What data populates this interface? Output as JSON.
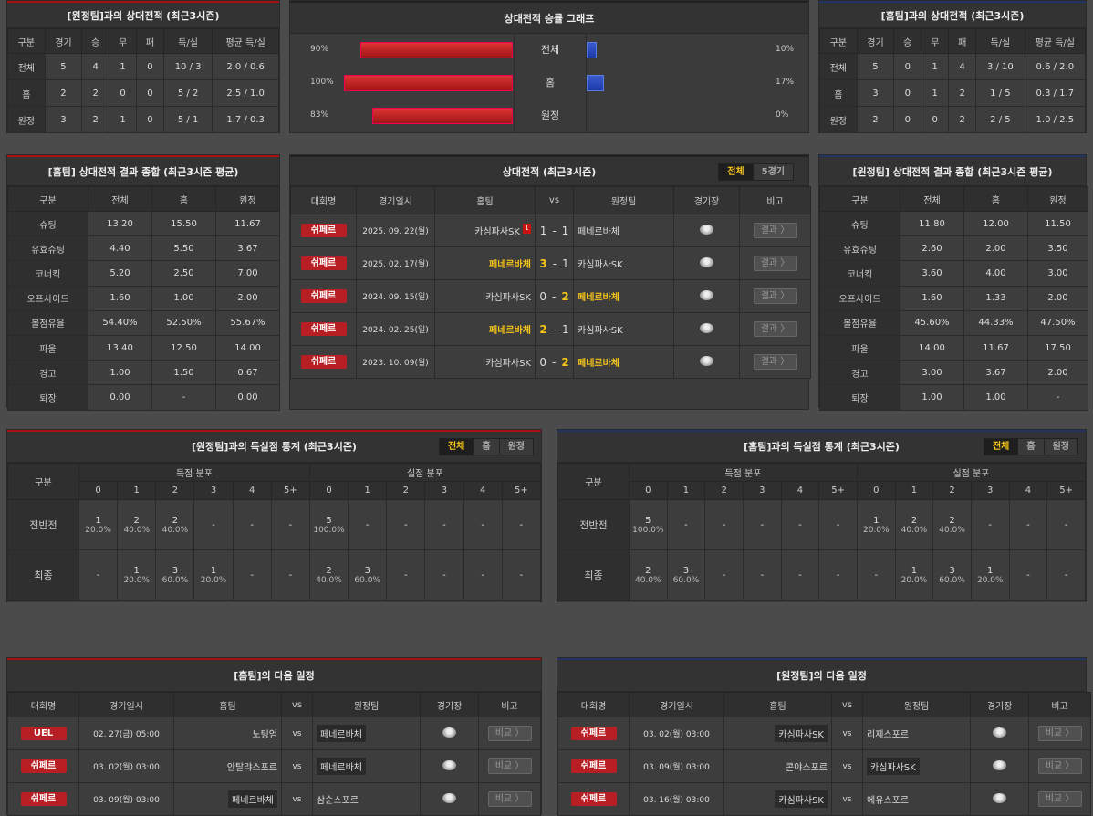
{
  "away_h2h": {
    "title": "[원정팀]과의 상대전적 (최근3시즌)",
    "headers": [
      "구분",
      "경기",
      "승",
      "무",
      "패",
      "득/실",
      "평균 득/실"
    ],
    "rows": [
      [
        "전체",
        "5",
        "4",
        "1",
        "0",
        "10 / 3",
        "2.0 / 0.6"
      ],
      [
        "홈",
        "2",
        "2",
        "0",
        "0",
        "5 / 2",
        "2.5 / 1.0"
      ],
      [
        "원정",
        "3",
        "2",
        "1",
        "0",
        "5 / 1",
        "1.7 / 0.3"
      ]
    ]
  },
  "home_h2h": {
    "title": "[홈팀]과의 상대전적 (최근3시즌)",
    "headers": [
      "구분",
      "경기",
      "승",
      "무",
      "패",
      "득/실",
      "평균 득/실"
    ],
    "rows": [
      [
        "전체",
        "5",
        "0",
        "1",
        "4",
        "3 / 10",
        "0.6 / 2.0"
      ],
      [
        "홈",
        "3",
        "0",
        "1",
        "2",
        "1 / 5",
        "0.3 / 1.7"
      ],
      [
        "원정",
        "2",
        "0",
        "0",
        "2",
        "2 / 5",
        "1.0 / 2.5"
      ]
    ]
  },
  "graph": {
    "title": "상대전적 승률 그래프",
    "rows": [
      {
        "cat": "전체",
        "left_label": "90%",
        "left": 90,
        "right_label": "10%",
        "right": 10
      },
      {
        "cat": "홈",
        "left_label": "100%",
        "left": 100,
        "right_label": "17%",
        "right": 17
      },
      {
        "cat": "원정",
        "left_label": "83%",
        "left": 83,
        "right_label": "0%",
        "right": 0
      }
    ]
  },
  "home_summary": {
    "title": "[홈팀] 상대전적 결과 종합 (최근3시즌 평균)",
    "headers": [
      "구분",
      "전체",
      "홈",
      "원정"
    ],
    "rows": [
      [
        "슈팅",
        "13.20",
        "15.50",
        "11.67"
      ],
      [
        "유효슈팅",
        "4.40",
        "5.50",
        "3.67"
      ],
      [
        "코너킥",
        "5.20",
        "2.50",
        "7.00"
      ],
      [
        "오프사이드",
        "1.60",
        "1.00",
        "2.00"
      ],
      [
        "볼점유율",
        "54.40%",
        "52.50%",
        "55.67%"
      ],
      [
        "파울",
        "13.40",
        "12.50",
        "14.00"
      ],
      [
        "경고",
        "1.00",
        "1.50",
        "0.67"
      ],
      [
        "퇴장",
        "0.00",
        "-",
        "0.00"
      ]
    ]
  },
  "away_summary": {
    "title": "[원정팀] 상대전적 결과 종합 (최근3시즌 평균)",
    "headers": [
      "구분",
      "전체",
      "홈",
      "원정"
    ],
    "rows": [
      [
        "슈팅",
        "11.80",
        "12.00",
        "11.50"
      ],
      [
        "유효슈팅",
        "2.60",
        "2.00",
        "3.50"
      ],
      [
        "코너킥",
        "3.60",
        "4.00",
        "3.00"
      ],
      [
        "오프사이드",
        "1.60",
        "1.33",
        "2.00"
      ],
      [
        "볼점유율",
        "45.60%",
        "44.33%",
        "47.50%"
      ],
      [
        "파울",
        "14.00",
        "11.67",
        "17.50"
      ],
      [
        "경고",
        "3.00",
        "3.67",
        "2.00"
      ],
      [
        "퇴장",
        "1.00",
        "1.00",
        "-"
      ]
    ]
  },
  "h2h_matches": {
    "title": "상대전적 (최근3시즌)",
    "tabs": [
      "전체",
      "5경기"
    ],
    "headers": {
      "league": "대회명",
      "date": "경기일시",
      "home": "홈팀",
      "vs": "vs",
      "away": "원정팀",
      "venue": "경기장",
      "note": "비고"
    },
    "result_label": "결과 〉",
    "rows": [
      {
        "league": "쉬페르",
        "date": "2025. 09. 22(월)",
        "home": "카심파사SK",
        "hs": "1",
        "as": "1",
        "away": "페네르바체",
        "card": "1",
        "win": ""
      },
      {
        "league": "쉬페르",
        "date": "2025. 02. 17(월)",
        "home": "페네르바체",
        "hs": "3",
        "as": "1",
        "away": "카심파사SK",
        "card": "",
        "win": "home"
      },
      {
        "league": "쉬페르",
        "date": "2024. 09. 15(일)",
        "home": "카심파사SK",
        "hs": "0",
        "as": "2",
        "away": "페네르바체",
        "card": "",
        "win": "away"
      },
      {
        "league": "쉬페르",
        "date": "2024. 02. 25(일)",
        "home": "페네르바체",
        "hs": "2",
        "as": "1",
        "away": "카심파사SK",
        "card": "",
        "win": "home"
      },
      {
        "league": "쉬페르",
        "date": "2023. 10. 09(월)",
        "home": "카심파사SK",
        "hs": "0",
        "as": "2",
        "away": "페네르바체",
        "card": "",
        "win": "away"
      }
    ]
  },
  "away_goals": {
    "title": "[원정팀]과의 득실점 통계 (최근3시즌)",
    "tabs": [
      "전체",
      "홈",
      "원정"
    ],
    "gubun": "구분",
    "scored": "득점 분포",
    "conceded": "실점 분포",
    "cols": [
      "0",
      "1",
      "2",
      "3",
      "4",
      "5+"
    ],
    "rows": [
      {
        "label": "전반전",
        "cells": [
          [
            "1",
            "20.0%"
          ],
          [
            "2",
            "40.0%"
          ],
          [
            "2",
            "40.0%"
          ],
          [
            "-",
            ""
          ],
          [
            "-",
            ""
          ],
          [
            "-",
            ""
          ],
          [
            "5",
            "100.0%"
          ],
          [
            "-",
            ""
          ],
          [
            "-",
            ""
          ],
          [
            "-",
            ""
          ],
          [
            "-",
            ""
          ],
          [
            "-",
            ""
          ]
        ]
      },
      {
        "label": "최종",
        "cells": [
          [
            "-",
            ""
          ],
          [
            "1",
            "20.0%"
          ],
          [
            "3",
            "60.0%"
          ],
          [
            "1",
            "20.0%"
          ],
          [
            "-",
            ""
          ],
          [
            "-",
            ""
          ],
          [
            "2",
            "40.0%"
          ],
          [
            "3",
            "60.0%"
          ],
          [
            "-",
            ""
          ],
          [
            "-",
            ""
          ],
          [
            "-",
            ""
          ],
          [
            "-",
            ""
          ]
        ]
      }
    ]
  },
  "home_goals": {
    "title": "[홈팀]과의 득실점 통계 (최근3시즌)",
    "tabs": [
      "전체",
      "홈",
      "원정"
    ],
    "gubun": "구분",
    "scored": "득점 분포",
    "conceded": "실점 분포",
    "cols": [
      "0",
      "1",
      "2",
      "3",
      "4",
      "5+"
    ],
    "rows": [
      {
        "label": "전반전",
        "cells": [
          [
            "5",
            "100.0%"
          ],
          [
            "-",
            ""
          ],
          [
            "-",
            ""
          ],
          [
            "-",
            ""
          ],
          [
            "-",
            ""
          ],
          [
            "-",
            ""
          ],
          [
            "1",
            "20.0%"
          ],
          [
            "2",
            "40.0%"
          ],
          [
            "2",
            "40.0%"
          ],
          [
            "-",
            ""
          ],
          [
            "-",
            ""
          ],
          [
            "-",
            ""
          ]
        ]
      },
      {
        "label": "최종",
        "cells": [
          [
            "2",
            "40.0%"
          ],
          [
            "3",
            "60.0%"
          ],
          [
            "-",
            ""
          ],
          [
            "-",
            ""
          ],
          [
            "-",
            ""
          ],
          [
            "-",
            ""
          ],
          [
            "-",
            ""
          ],
          [
            "1",
            "20.0%"
          ],
          [
            "3",
            "60.0%"
          ],
          [
            "1",
            "20.0%"
          ],
          [
            "-",
            ""
          ],
          [
            "-",
            ""
          ]
        ]
      }
    ]
  },
  "home_next": {
    "title": "[홈팀]의 다음 일정",
    "headers": {
      "league": "대회명",
      "date": "경기일시",
      "home": "홈팀",
      "vs": "vs",
      "away": "원정팀",
      "venue": "경기장",
      "note": "비고"
    },
    "compare": "비교 〉",
    "rows": [
      {
        "league": "UEL",
        "date": "02. 27(금) 05:00",
        "home": "노팅엄",
        "away": "페네르바체",
        "box": "away"
      },
      {
        "league": "쉬페르",
        "date": "03. 02(월) 03:00",
        "home": "안탈랴스포르",
        "away": "페네르바체",
        "box": "away"
      },
      {
        "league": "쉬페르",
        "date": "03. 09(월) 03:00",
        "home": "페네르바체",
        "away": "삼순스포르",
        "box": "home"
      }
    ]
  },
  "away_next": {
    "title": "[원정팀]의 다음 일정",
    "headers": {
      "league": "대회명",
      "date": "경기일시",
      "home": "홈팀",
      "vs": "vs",
      "away": "원정팀",
      "venue": "경기장",
      "note": "비고"
    },
    "compare": "비교 〉",
    "rows": [
      {
        "league": "쉬페르",
        "date": "03. 02(월) 03:00",
        "home": "카심파사SK",
        "away": "리제스포르",
        "box": "home"
      },
      {
        "league": "쉬페르",
        "date": "03. 09(월) 03:00",
        "home": "콘야스포르",
        "away": "카심파사SK",
        "box": "away"
      },
      {
        "league": "쉬페르",
        "date": "03. 16(월) 03:00",
        "home": "카심파사SK",
        "away": "에유스포르",
        "box": "home"
      }
    ]
  }
}
